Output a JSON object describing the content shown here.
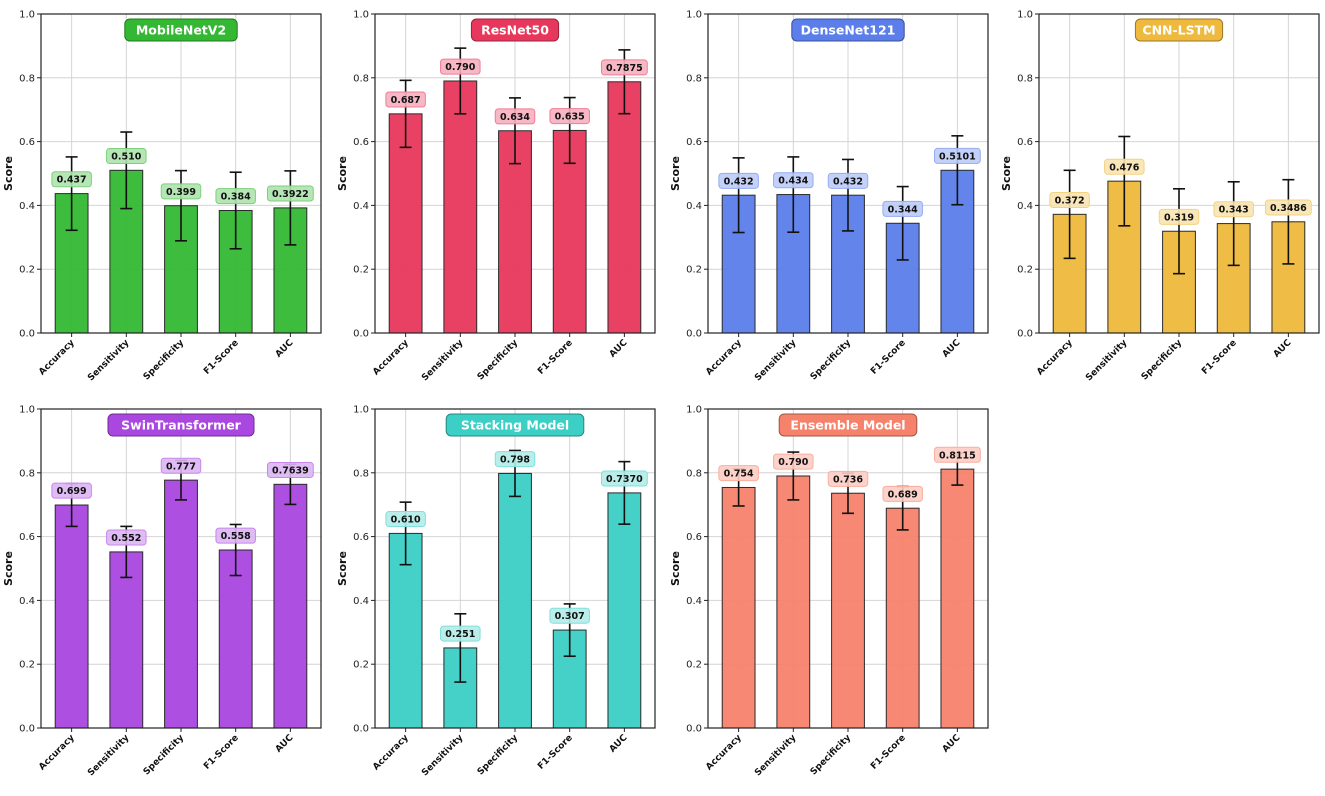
{
  "chart_data": {
    "type": "bar",
    "ylabel": "Score",
    "ylim": [
      0,
      1.0
    ],
    "yticks": [
      "0.0",
      "0.2",
      "0.4",
      "0.6",
      "0.8",
      "1.0"
    ],
    "grid": true,
    "categories": [
      "Accuracy",
      "Sensitivity",
      "Specificity",
      "F1-Score",
      "AUC"
    ],
    "panels": [
      {
        "title": "MobileNetV2",
        "color": "#34b834",
        "values": [
          0.437,
          0.51,
          0.399,
          0.384,
          0.3922
        ],
        "labels": [
          "0.437",
          "0.510",
          "0.399",
          "0.384",
          "0.3922"
        ],
        "errors": [
          0.115,
          0.12,
          0.11,
          0.12,
          0.116
        ]
      },
      {
        "title": "ResNet50",
        "color": "#e8375c",
        "values": [
          0.687,
          0.79,
          0.634,
          0.635,
          0.7875
        ],
        "labels": [
          "0.687",
          "0.790",
          "0.634",
          "0.635",
          "0.7875"
        ],
        "errors": [
          0.105,
          0.103,
          0.103,
          0.103,
          0.1
        ]
      },
      {
        "title": "DenseNet121",
        "color": "#5b7eea",
        "values": [
          0.432,
          0.434,
          0.432,
          0.344,
          0.5101
        ],
        "labels": [
          "0.432",
          "0.434",
          "0.432",
          "0.344",
          "0.5101"
        ],
        "errors": [
          0.117,
          0.118,
          0.112,
          0.115,
          0.108
        ]
      },
      {
        "title": "CNN-LSTM",
        "color": "#eeb93c",
        "values": [
          0.372,
          0.476,
          0.319,
          0.343,
          0.3486
        ],
        "labels": [
          "0.372",
          "0.476",
          "0.319",
          "0.343",
          "0.3486"
        ],
        "errors": [
          0.138,
          0.14,
          0.133,
          0.131,
          0.132
        ]
      },
      {
        "title": "SwinTransformer",
        "color": "#a947e0",
        "values": [
          0.699,
          0.552,
          0.777,
          0.558,
          0.7639
        ],
        "labels": [
          "0.699",
          "0.552",
          "0.777",
          "0.558",
          "0.7639"
        ],
        "errors": [
          0.067,
          0.08,
          0.062,
          0.08,
          0.063
        ]
      },
      {
        "title": "Stacking Model",
        "color": "#3ccfc5",
        "values": [
          0.61,
          0.251,
          0.798,
          0.307,
          0.737
        ],
        "labels": [
          "0.610",
          "0.251",
          "0.798",
          "0.307",
          "0.7370"
        ],
        "errors": [
          0.098,
          0.107,
          0.072,
          0.082,
          0.098
        ]
      },
      {
        "title": "Ensemble Model",
        "color": "#f7826c",
        "values": [
          0.754,
          0.79,
          0.736,
          0.689,
          0.8115
        ],
        "labels": [
          "0.754",
          "0.790",
          "0.736",
          "0.689",
          "0.8115"
        ],
        "errors": [
          0.058,
          0.075,
          0.063,
          0.068,
          0.05
        ]
      }
    ]
  }
}
